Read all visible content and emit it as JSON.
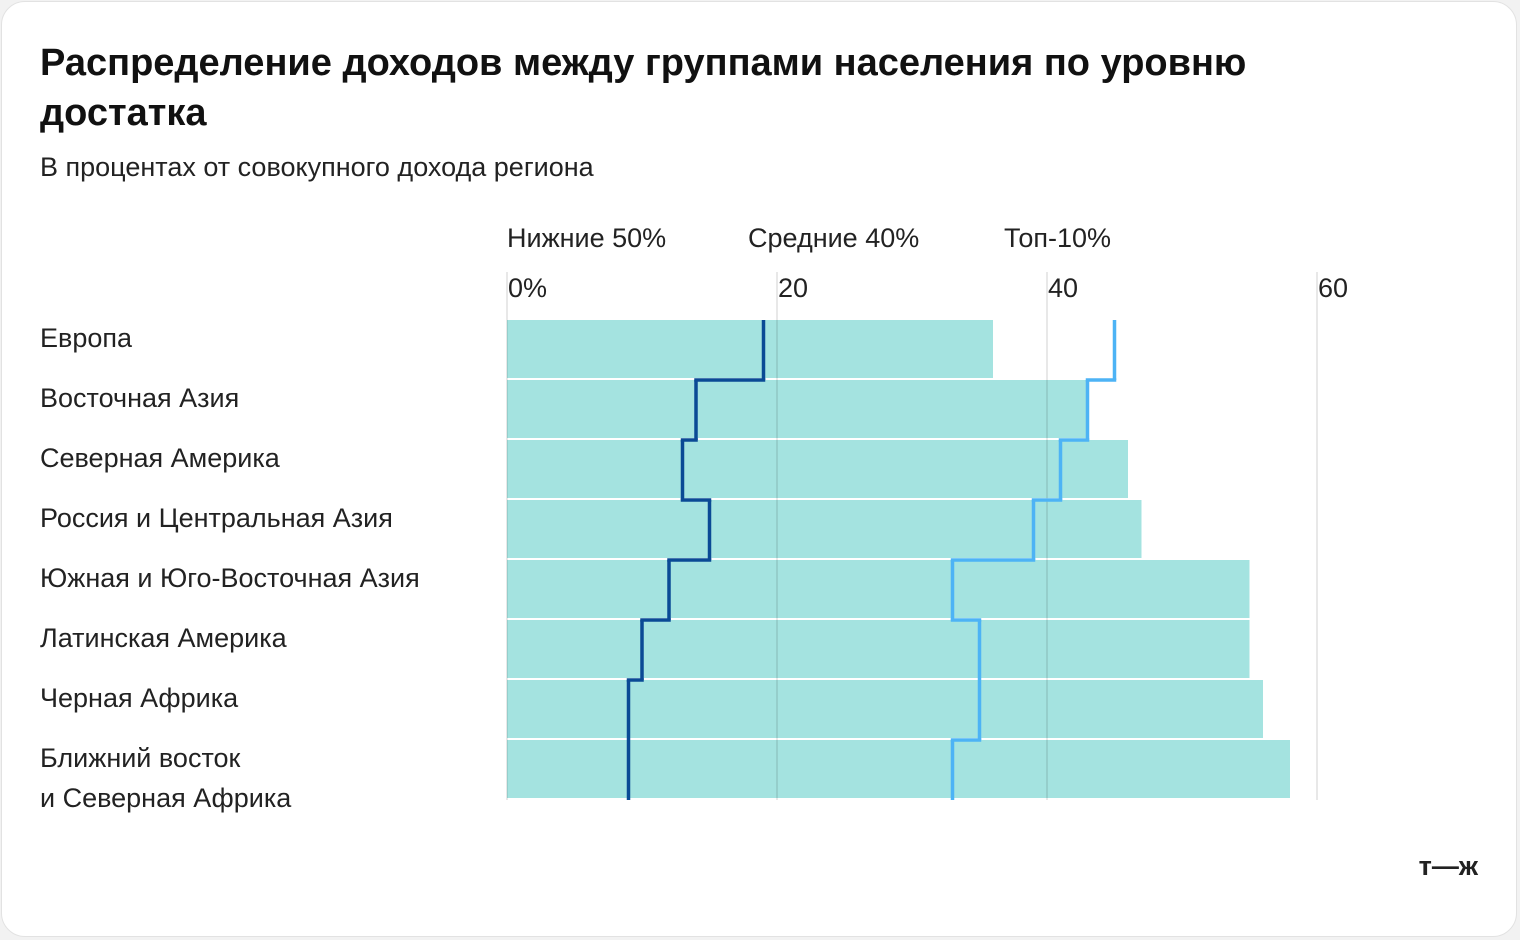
{
  "chart_data": {
    "type": "bar-step",
    "title": "Распределение доходов между группами населения по уровню достатка",
    "subtitle": "В процентах от совокупного дохода региона",
    "categories": [
      "Европа",
      "Восточная Азия",
      "Северная Америка",
      "Россия и Центральная Азия",
      "Южная и Юго-Восточная Азия",
      "Латинская Америка",
      "Черная Африка",
      "Ближний восток\nи Северная Африка"
    ],
    "series": [
      {
        "name": "Нижние 50%",
        "color": "#0a4a95",
        "mark": "step",
        "values": [
          19,
          14,
          13,
          15,
          12,
          10,
          9,
          9
        ]
      },
      {
        "name": "Средние 40%",
        "color": "#4db3f5",
        "mark": "step",
        "values": [
          45,
          43,
          41,
          39,
          33,
          35,
          35,
          33
        ]
      },
      {
        "name": "Топ-10%",
        "color": "#5fd3cc",
        "bar_color": "#a4e3e0",
        "mark": "bar",
        "values": [
          36,
          43,
          46,
          47,
          55,
          55,
          56,
          58
        ]
      }
    ],
    "xlim": [
      0,
      60
    ],
    "xticks": [
      {
        "value": 0,
        "label": "0%"
      },
      20,
      40,
      60
    ],
    "grid": true,
    "logo": "т—ж"
  }
}
